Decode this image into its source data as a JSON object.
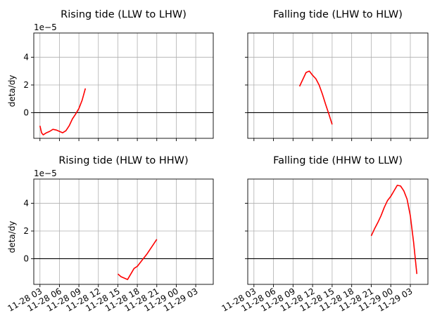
{
  "chart_data": [
    {
      "type": "line",
      "title": "Rising tide (LLW to LHW)",
      "ylabel": "deta/dy",
      "offset_label": "1e−5",
      "show_yticklabels": true,
      "show_xticklabels": false,
      "xlim_hours": [
        -0.95,
        26.7
      ],
      "ylim": [
        -1.85,
        5.75
      ],
      "yticks": [
        0,
        2,
        4
      ],
      "grid": true,
      "hline_y": 0,
      "series": [
        {
          "color": "#ff0000",
          "x_hours": [
            0,
            0.25,
            0.5,
            1.0,
            1.5,
            2.0,
            2.5,
            3.0,
            3.5,
            4.0,
            4.5,
            5.0,
            5.5,
            6.0,
            6.5,
            7.0
          ],
          "values": [
            -0.95,
            -1.45,
            -1.6,
            -1.45,
            -1.35,
            -1.2,
            -1.25,
            -1.35,
            -1.45,
            -1.3,
            -0.95,
            -0.45,
            -0.1,
            0.3,
            0.9,
            1.75
          ]
        }
      ]
    },
    {
      "type": "line",
      "title": "Falling tide (LHW to HLW)",
      "ylabel": "",
      "offset_label": "",
      "show_yticklabels": false,
      "show_xticklabels": false,
      "xlim_hours": [
        -0.95,
        26.7
      ],
      "ylim": [
        -1.85,
        5.75
      ],
      "yticks": [
        0,
        2,
        4
      ],
      "grid": true,
      "hline_y": 0,
      "series": [
        {
          "color": "#ff0000",
          "x_hours": [
            7.0,
            7.5,
            8.0,
            8.5,
            9.0,
            9.5,
            10.0,
            10.5,
            11.0,
            11.5,
            12.0
          ],
          "values": [
            1.9,
            2.4,
            2.9,
            3.0,
            2.7,
            2.45,
            2.0,
            1.35,
            0.6,
            -0.1,
            -0.85
          ]
        }
      ]
    },
    {
      "type": "line",
      "title": "Rising tide (HLW to HHW)",
      "ylabel": "deta/dy",
      "offset_label": "1e−5",
      "show_yticklabels": true,
      "show_xticklabels": true,
      "xlim_hours": [
        -0.95,
        26.7
      ],
      "ylim": [
        -1.85,
        5.75
      ],
      "yticks": [
        0,
        2,
        4
      ],
      "grid": true,
      "hline_y": 0,
      "series": [
        {
          "color": "#ff0000",
          "x_hours": [
            12.0,
            12.5,
            13.0,
            13.5,
            14.0,
            14.5,
            15.0,
            15.5,
            16.0,
            16.5,
            17.0,
            17.5,
            18.0
          ],
          "values": [
            -1.1,
            -1.3,
            -1.4,
            -1.5,
            -1.1,
            -0.7,
            -0.55,
            -0.25,
            0.05,
            0.35,
            0.7,
            1.05,
            1.4
          ]
        }
      ]
    },
    {
      "type": "line",
      "title": "Falling tide (HHW to LLW)",
      "ylabel": "",
      "offset_label": "",
      "show_yticklabels": false,
      "show_xticklabels": true,
      "xlim_hours": [
        -0.95,
        26.7
      ],
      "ylim": [
        -1.85,
        5.75
      ],
      "yticks": [
        0,
        2,
        4
      ],
      "grid": true,
      "hline_y": 0,
      "series": [
        {
          "color": "#ff0000",
          "x_hours": [
            18.0,
            18.5,
            19.0,
            19.5,
            20.0,
            20.5,
            21.0,
            21.5,
            22.0,
            22.5,
            23.0,
            23.5,
            24.0,
            24.5,
            25.0
          ],
          "values": [
            1.65,
            2.15,
            2.6,
            3.1,
            3.7,
            4.2,
            4.5,
            4.9,
            5.3,
            5.25,
            4.9,
            4.3,
            3.1,
            1.2,
            -1.1
          ]
        }
      ]
    }
  ],
  "x_tick_hours": [
    0,
    3,
    6,
    9,
    12,
    15,
    18,
    21,
    24,
    27
  ],
  "x_tick_labels": [
    "11-28 03",
    "11-28 06",
    "11-28 09",
    "11-28 12",
    "11-28 15",
    "11-28 18",
    "11-28 21",
    "11-29 00",
    "11-29 03"
  ],
  "y_tick_labels": [
    "0",
    "2",
    "4"
  ],
  "colors": {
    "line": "#ff0000",
    "zero_line": "#000000",
    "grid": "#b0b0b0"
  }
}
